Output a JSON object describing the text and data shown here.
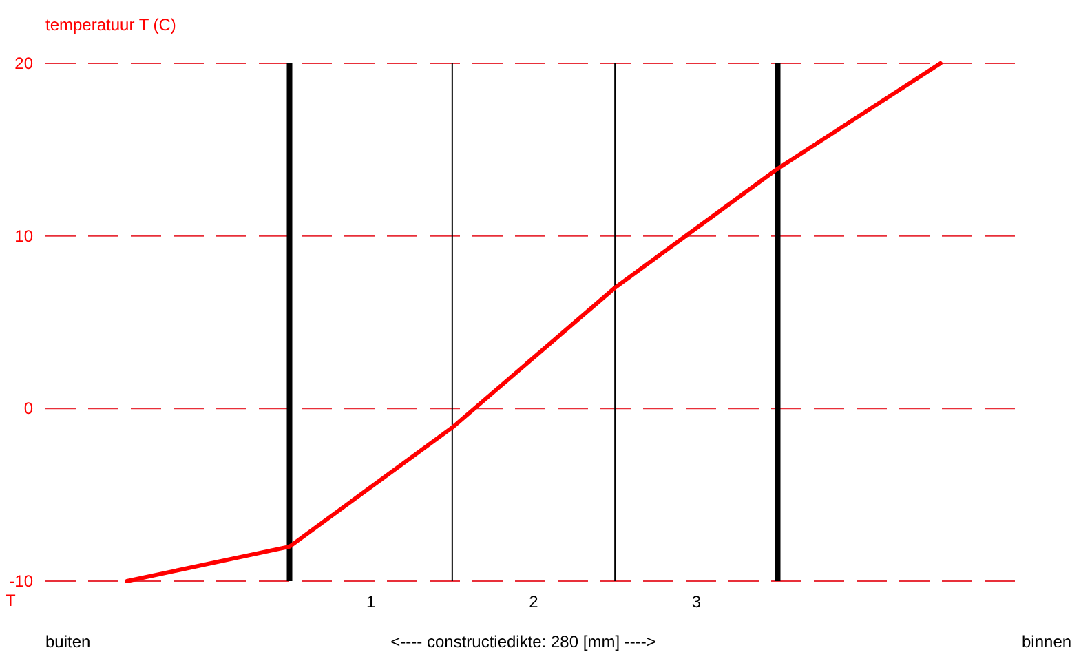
{
  "chart_data": {
    "type": "line",
    "ylabel": "temperatuur T (C)",
    "categories": [
      null,
      null,
      null,
      null,
      null,
      null
    ],
    "series": [
      {
        "color": "#ff0000",
        "values": [
          -10,
          -8,
          -1.1,
          7,
          13.9,
          20
        ]
      }
    ],
    "ylim": [
      -10,
      20
    ],
    "yticks": [
      -10,
      0,
      10,
      20
    ],
    "grid": true,
    "line_style": "solid",
    "marker": "none",
    "annotations": [
      "T",
      "1",
      "2",
      "3",
      "buiten",
      "<---- constructiedikte: 280 [mm] ---->",
      "binnen"
    ]
  }
}
